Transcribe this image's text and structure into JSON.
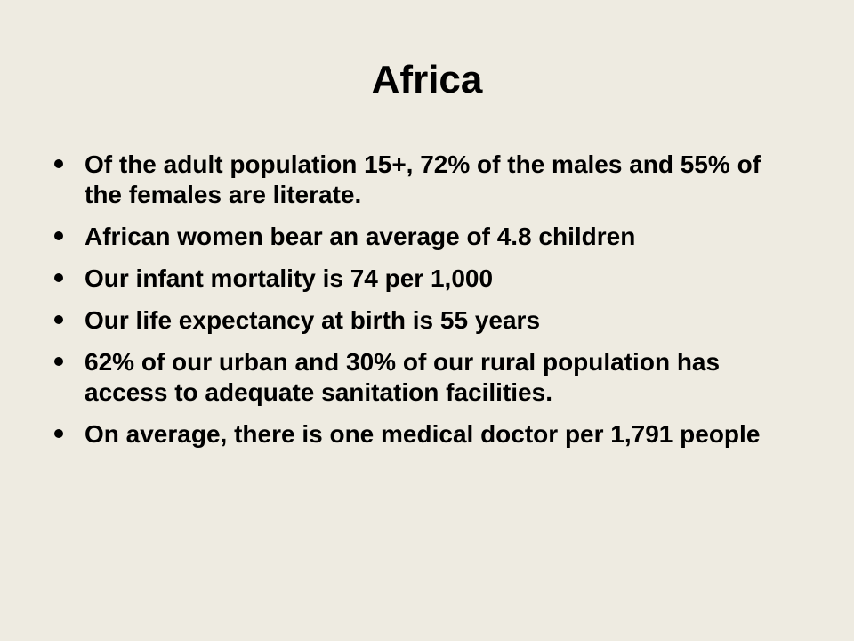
{
  "slide": {
    "title": "Africa",
    "bullets": [
      "Of the adult population 15+, 72% of the males and 55% of the females are literate.",
      "African women bear an average of 4.8 children",
      "Our infant mortality is 74 per 1,000",
      "Our life expectancy at birth is 55 years",
      "62% of our urban and 30% of our rural population has access to adequate sanitation facilities.",
      "On average, there is one medical doctor per 1,791 people"
    ]
  },
  "colors": {
    "background": "#eeebe1",
    "text": "#000000"
  }
}
